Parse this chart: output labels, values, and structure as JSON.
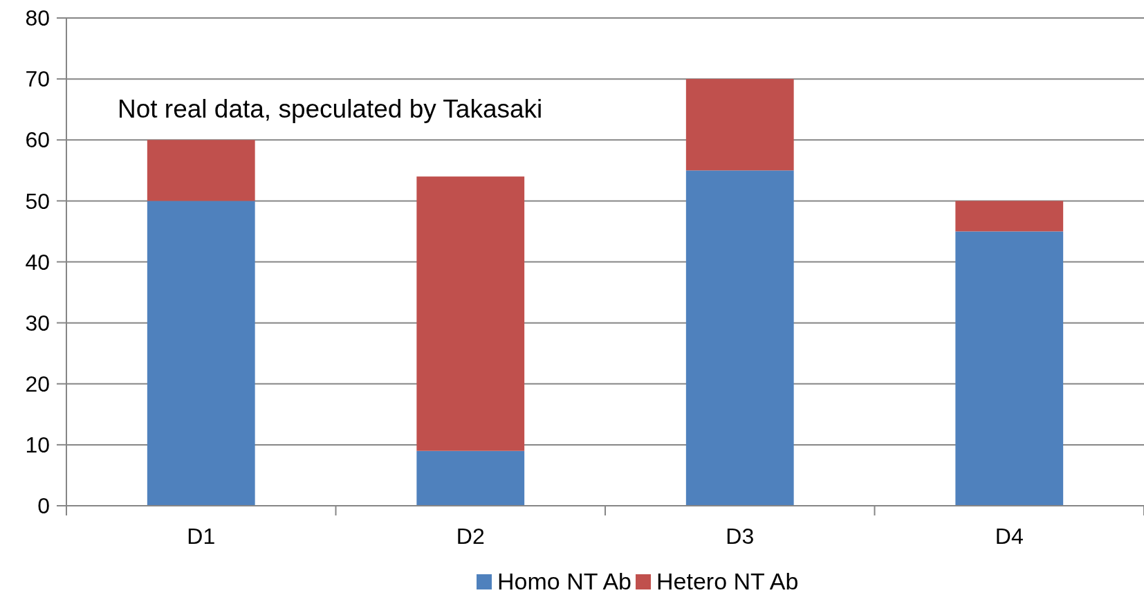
{
  "chart_data": {
    "type": "bar",
    "stacked": true,
    "categories": [
      "D1",
      "D2",
      "D3",
      "D4"
    ],
    "series": [
      {
        "name": "Homo NT Ab",
        "color": "#4f81bd",
        "values": [
          50,
          9,
          55,
          45
        ]
      },
      {
        "name": "Hetero NT Ab",
        "color": "#c0504d",
        "values": [
          10,
          45,
          15,
          5
        ]
      }
    ],
    "ylim": [
      0,
      80
    ],
    "yticks": [
      0,
      10,
      20,
      30,
      40,
      50,
      60,
      70,
      80
    ],
    "grid": "y",
    "legend": "bottom",
    "annotations": [
      "Not real data, speculated by Takasaki"
    ]
  }
}
